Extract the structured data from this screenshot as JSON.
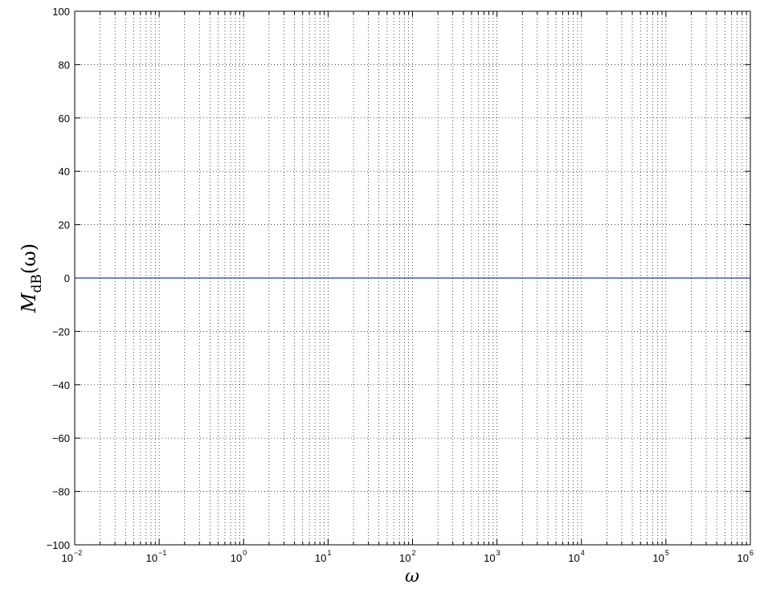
{
  "chart_data": {
    "type": "line",
    "xscale": "log",
    "xlabel": "ω",
    "ylabel": {
      "main": "M",
      "sub": "dB",
      "arg": "(ω)"
    },
    "xlim": [
      0.01,
      1000000
    ],
    "ylim": [
      -100,
      100
    ],
    "xticks": [
      {
        "value": 0.01,
        "base": "10",
        "exp": "−2"
      },
      {
        "value": 0.1,
        "base": "10",
        "exp": "−1"
      },
      {
        "value": 1,
        "base": "10",
        "exp": "0"
      },
      {
        "value": 10,
        "base": "10",
        "exp": "1"
      },
      {
        "value": 100,
        "base": "10",
        "exp": "2"
      },
      {
        "value": 1000,
        "base": "10",
        "exp": "3"
      },
      {
        "value": 10000,
        "base": "10",
        "exp": "4"
      },
      {
        "value": 100000,
        "base": "10",
        "exp": "5"
      },
      {
        "value": 1000000,
        "base": "10",
        "exp": "6"
      }
    ],
    "yticks": [
      {
        "value": 100,
        "label": "100"
      },
      {
        "value": 80,
        "label": "80"
      },
      {
        "value": 60,
        "label": "60"
      },
      {
        "value": 40,
        "label": "40"
      },
      {
        "value": 20,
        "label": "20"
      },
      {
        "value": 0,
        "label": "0"
      },
      {
        "value": -20,
        "label": "−20"
      },
      {
        "value": -40,
        "label": "−40"
      },
      {
        "value": -60,
        "label": "−60"
      },
      {
        "value": -80,
        "label": "−80"
      },
      {
        "value": -100,
        "label": "−100"
      }
    ],
    "grid": true,
    "series": [
      {
        "color": "#1f3c9a",
        "x": [
          0.01,
          1000000
        ],
        "y": [
          0,
          0
        ]
      }
    ]
  }
}
